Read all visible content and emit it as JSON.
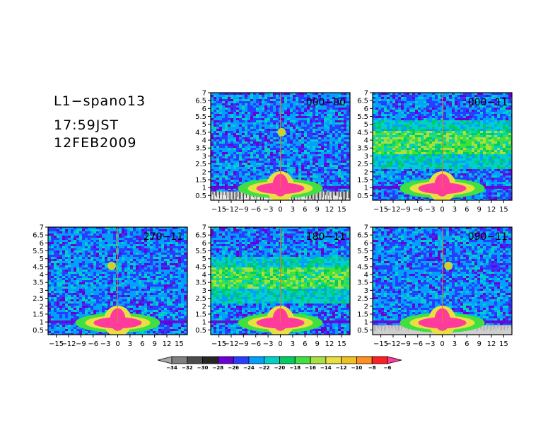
{
  "header": {
    "station": "L1−spano13",
    "time": "17:59JST",
    "date": "12FEB2009"
  },
  "chart_data": {
    "type": "heatmap",
    "x_ticks": [
      "−15",
      "−12",
      "−9",
      "−6",
      "−3",
      "0",
      "3",
      "6",
      "9",
      "12",
      "15"
    ],
    "x_tick_values": [
      -15,
      -12,
      -9,
      -6,
      -3,
      0,
      3,
      6,
      9,
      12,
      15
    ],
    "xlim": [
      -17,
      17
    ],
    "y_ticks": [
      "0.5",
      "1",
      "1.5",
      "2",
      "2.5",
      "3",
      "3.5",
      "4",
      "4.5",
      "5",
      "5.5",
      "6",
      "6.5",
      "7"
    ],
    "y_tick_values": [
      0.5,
      1,
      1.5,
      2,
      2.5,
      3,
      3.5,
      4,
      4.5,
      5,
      5.5,
      6,
      6.5,
      7
    ],
    "ylim": [
      0.2,
      7
    ],
    "panels": [
      {
        "label": "000−00",
        "row": 0,
        "col": 1,
        "band": null,
        "spot": [
          0.3,
          4.5
        ],
        "floor_texture": "dark"
      },
      {
        "label": "000−11",
        "row": 0,
        "col": 2,
        "band": [
          3.2,
          4.6
        ],
        "spot": null,
        "floor_texture": "none"
      },
      {
        "label": "270−11",
        "row": 1,
        "col": 0,
        "band": null,
        "spot": [
          -1.5,
          4.55
        ],
        "floor_texture": "none"
      },
      {
        "label": "180−11",
        "row": 1,
        "col": 1,
        "band": [
          3.2,
          4.5
        ],
        "spot": null,
        "floor_texture": "none"
      },
      {
        "label": "090−11",
        "row": 1,
        "col": 2,
        "band": null,
        "spot": [
          1.5,
          4.55
        ],
        "floor_texture": "gray"
      }
    ],
    "colorbar": {
      "labels": [
        "−34",
        "−32",
        "−30",
        "−28",
        "−26",
        "−24",
        "−22",
        "−20",
        "−18",
        "−16",
        "−14",
        "−12",
        "−10",
        "−8",
        "−6"
      ],
      "colors": [
        "#a8a8a8",
        "#808080",
        "#4c4c4c",
        "#262626",
        "#6a00d4",
        "#2a3cff",
        "#00a0ff",
        "#00d0c8",
        "#00cc60",
        "#40e040",
        "#a8e040",
        "#e8e040",
        "#f0c020",
        "#ff9020",
        "#ff2020",
        "#ff3c9c"
      ]
    }
  }
}
